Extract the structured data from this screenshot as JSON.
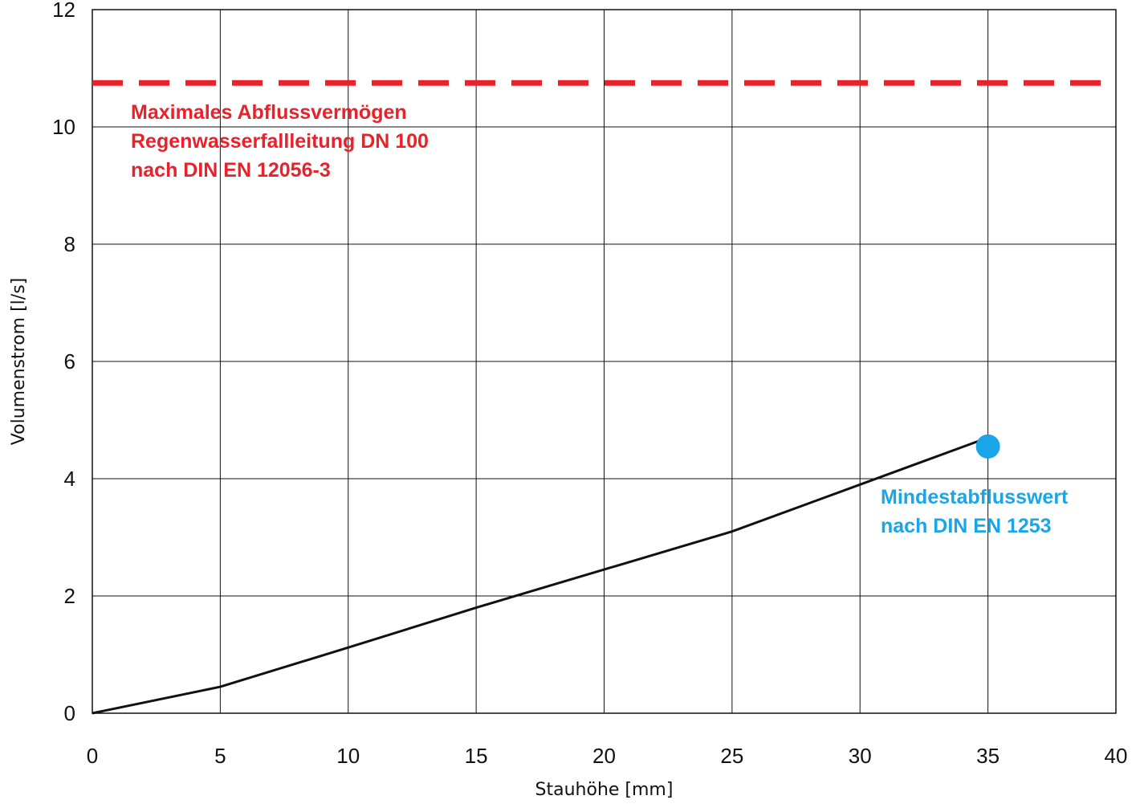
{
  "chart_data": {
    "type": "line",
    "xlabel": "Stauhöhe [mm]",
    "ylabel": "Volumenstrom [l/s]",
    "xlim": [
      0,
      40
    ],
    "ylim": [
      0,
      12
    ],
    "x_ticks": [
      "0",
      "5",
      "10",
      "15",
      "20",
      "25",
      "30",
      "35",
      "40"
    ],
    "y_ticks": [
      "0",
      "2",
      "4",
      "6",
      "8",
      "10",
      "12"
    ],
    "grid": true,
    "series": [
      {
        "x": [
          0,
          5,
          10,
          15,
          20,
          25,
          30,
          35
        ],
        "y": [
          0,
          0.45,
          1.12,
          1.8,
          2.45,
          3.1,
          3.9,
          4.7
        ],
        "color": "#111111"
      }
    ],
    "reference_line": {
      "y": 10.75,
      "style": "dashed",
      "color": "#e8212b",
      "label_lines": [
        "Maximales Abflussvermögen",
        "Regenwasserfallleitung DN 100",
        "nach DIN EN 12056-3"
      ]
    },
    "marker_point": {
      "x": 35,
      "y": 4.55,
      "color": "#1aa5e6",
      "label_lines": [
        "Mindestabflusswert",
        "nach DIN EN 1253"
      ]
    }
  }
}
